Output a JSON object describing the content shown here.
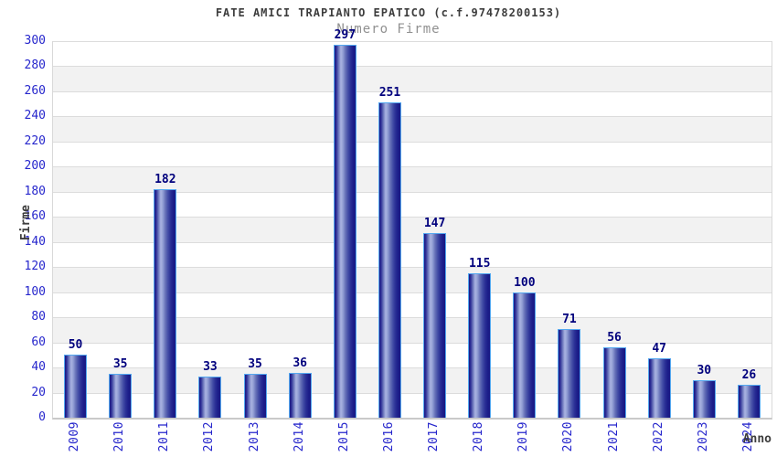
{
  "chart_data": {
    "type": "bar",
    "title": "FATE AMICI TRAPIANTO EPATICO (c.f.97478200153)",
    "subtitle": "Numero Firme",
    "xlabel": "Anno",
    "ylabel": "Firme",
    "categories": [
      "2009",
      "2010",
      "2011",
      "2012",
      "2013",
      "2014",
      "2015",
      "2016",
      "2017",
      "2018",
      "2019",
      "2020",
      "2021",
      "2022",
      "2023",
      "2024"
    ],
    "values": [
      50,
      35,
      182,
      33,
      35,
      36,
      297,
      251,
      147,
      115,
      100,
      71,
      56,
      47,
      30,
      26
    ],
    "ylim": [
      0,
      300
    ],
    "ytick_step": 20,
    "grid": "horizontal bands, alternating stripes every 20 units",
    "legend": "none"
  },
  "colors": {
    "title": "#3d3d3d",
    "subtitle": "#909090",
    "tick_label": "#2626cc",
    "value_label": "#00007d",
    "axis_title": "#3d3d3d",
    "bar_border": "#54a8f0",
    "band_gray": "#f2f2f2",
    "band_white": "#ffffff",
    "gridline": "#dcdcdc",
    "axis_line": "#c9c9c9",
    "bar_gradient": [
      [
        "#181884",
        "0%"
      ],
      [
        "#2e2e96",
        "8%"
      ],
      [
        "#6670b8",
        "18%"
      ],
      [
        "#aab4e2",
        "30%"
      ],
      [
        "#929ed4",
        "40%"
      ],
      [
        "#6671b8",
        "52%"
      ],
      [
        "#444ea6",
        "64%"
      ],
      [
        "#2c3197",
        "76%"
      ],
      [
        "#1d1f8a",
        "88%"
      ],
      [
        "#181884",
        "100%"
      ]
    ]
  }
}
